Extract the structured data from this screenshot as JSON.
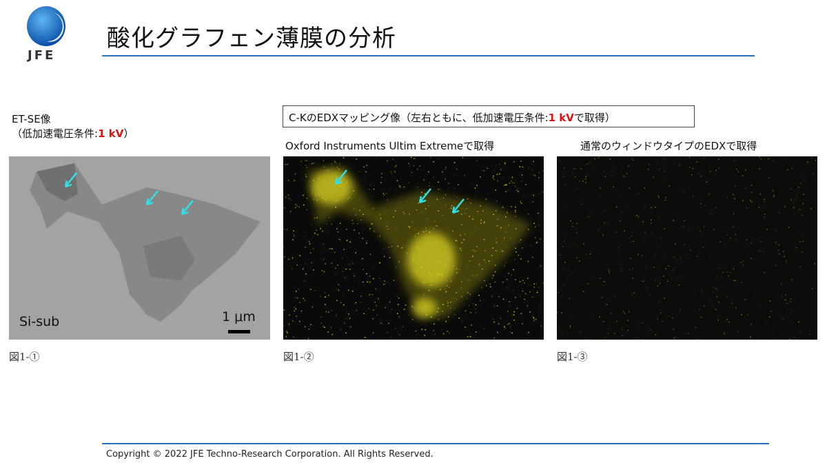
{
  "header": {
    "logo_text": "JFE",
    "title": "酸化グラフェン薄膜の分析"
  },
  "panel1": {
    "label_line1": "ET-SE像",
    "label_line2_prefix": "（低加速電圧条件:",
    "label_line2_value": "1 kV",
    "label_line2_suffix": "）",
    "substrate": "Si-sub",
    "scale": "1 μm",
    "caption": "図1-①"
  },
  "mapping_box": {
    "prefix": "C-KのEDXマッピング像（左右ともに、低加速電圧条件:",
    "value": "1 kV",
    "suffix": "で取得）"
  },
  "panel2": {
    "label": "Oxford Instruments  Ultim Extremeで取得",
    "caption": "図1-②"
  },
  "panel3": {
    "label": "通常のウィンドウタイプのEDXで取得",
    "caption": "図1-③"
  },
  "footer": {
    "copyright": "Copyright © 2022 JFE Techno-Research Corporation. All Rights Reserved."
  },
  "colors": {
    "accent_line": "#2a6ebf",
    "highlight": "#e01010",
    "arrow": "#33e0e8",
    "edx_signal": "#e8e020"
  }
}
